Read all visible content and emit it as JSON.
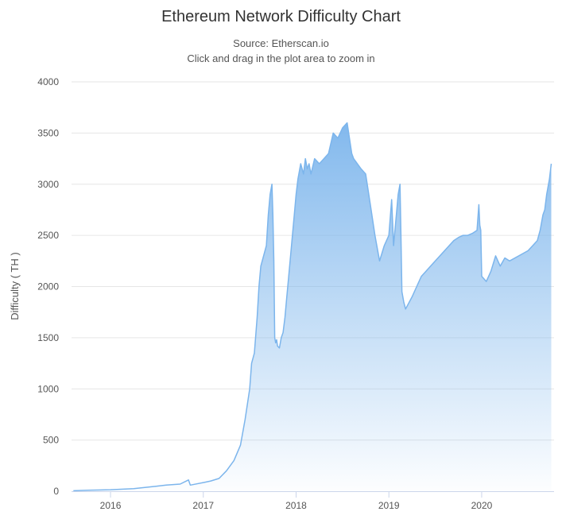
{
  "chart_data": {
    "type": "area",
    "title": "Ethereum Network Difficulty Chart",
    "subtitle": "Source: Etherscan.io",
    "instruction": "Click and drag in the plot area to zoom in",
    "xlabel": "",
    "ylabel": "Difficulty ( TH )",
    "ylim": [
      0,
      4000
    ],
    "xlim": [
      2015.58,
      2020.78
    ],
    "yticks": [
      "0",
      "500",
      "1000",
      "1500",
      "2000",
      "2500",
      "3000",
      "3500",
      "4000"
    ],
    "yticks_values": [
      0,
      500,
      1000,
      1500,
      2000,
      2500,
      3000,
      3500,
      4000
    ],
    "xticks": [
      "2016",
      "2017",
      "2018",
      "2019",
      "2020"
    ],
    "xticks_values": [
      2016,
      2017,
      2018,
      2019,
      2020
    ],
    "grid": true,
    "series": [
      {
        "name": "Difficulty",
        "color": "#7cb5ec",
        "x": [
          2015.6,
          2015.75,
          2016.0,
          2016.25,
          2016.5,
          2016.6,
          2016.75,
          2016.84,
          2016.86,
          2017.0,
          2017.08,
          2017.17,
          2017.25,
          2017.33,
          2017.4,
          2017.45,
          2017.5,
          2017.52,
          2017.55,
          2017.58,
          2017.6,
          2017.62,
          2017.65,
          2017.68,
          2017.7,
          2017.72,
          2017.74,
          2017.75,
          2017.76,
          2017.77,
          2017.78,
          2017.79,
          2017.8,
          2017.82,
          2017.84,
          2017.86,
          2017.88,
          2017.9,
          2017.92,
          2017.95,
          2017.98,
          2018.0,
          2018.02,
          2018.05,
          2018.08,
          2018.1,
          2018.12,
          2018.14,
          2018.16,
          2018.2,
          2018.25,
          2018.3,
          2018.35,
          2018.4,
          2018.45,
          2018.5,
          2018.55,
          2018.6,
          2018.62,
          2018.66,
          2018.7,
          2018.75,
          2018.8,
          2018.85,
          2018.9,
          2018.95,
          2019.0,
          2019.03,
          2019.05,
          2019.08,
          2019.1,
          2019.12,
          2019.13,
          2019.14,
          2019.16,
          2019.18,
          2019.25,
          2019.3,
          2019.35,
          2019.4,
          2019.45,
          2019.5,
          2019.55,
          2019.6,
          2019.65,
          2019.7,
          2019.75,
          2019.8,
          2019.85,
          2019.9,
          2019.95,
          2019.97,
          2019.98,
          2019.99,
          2020.0,
          2020.05,
          2020.1,
          2020.15,
          2020.2,
          2020.25,
          2020.3,
          2020.4,
          2020.5,
          2020.55,
          2020.6,
          2020.63,
          2020.66,
          2020.68,
          2020.7,
          2020.73,
          2020.75
        ],
        "values": [
          5,
          10,
          15,
          25,
          50,
          60,
          70,
          110,
          60,
          85,
          100,
          125,
          200,
          300,
          450,
          700,
          1000,
          1250,
          1350,
          1700,
          2000,
          2200,
          2300,
          2400,
          2700,
          2900,
          3000,
          2700,
          2250,
          1500,
          1450,
          1480,
          1420,
          1400,
          1500,
          1550,
          1700,
          1900,
          2100,
          2400,
          2700,
          2900,
          3050,
          3200,
          3100,
          3250,
          3150,
          3200,
          3100,
          3250,
          3200,
          3250,
          3300,
          3500,
          3450,
          3550,
          3600,
          3300,
          3250,
          3200,
          3150,
          3100,
          2800,
          2500,
          2250,
          2400,
          2500,
          2850,
          2400,
          2700,
          2900,
          3000,
          2500,
          1950,
          1850,
          1780,
          1900,
          2000,
          2100,
          2150,
          2200,
          2250,
          2300,
          2350,
          2400,
          2450,
          2480,
          2500,
          2500,
          2520,
          2550,
          2800,
          2600,
          2550,
          2100,
          2050,
          2150,
          2300,
          2200,
          2280,
          2250,
          2300,
          2350,
          2400,
          2450,
          2550,
          2700,
          2750,
          2900,
          3050,
          3200
        ]
      }
    ]
  }
}
